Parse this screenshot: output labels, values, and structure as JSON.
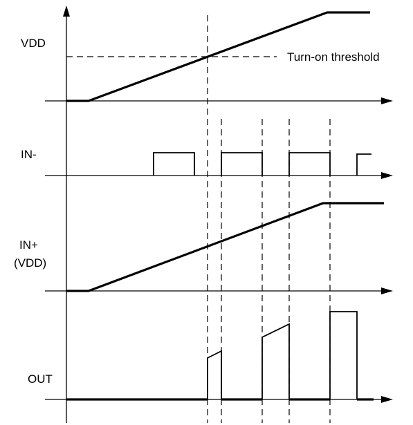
{
  "labels": {
    "vdd": "VDD",
    "threshold": "Turn-on threshold",
    "in_minus": "IN-",
    "in_plus_line1": "IN+",
    "in_plus_line2": "(VDD)",
    "out": "OUT"
  },
  "colors": {
    "line": "#000000",
    "background": "#ffffff"
  }
}
